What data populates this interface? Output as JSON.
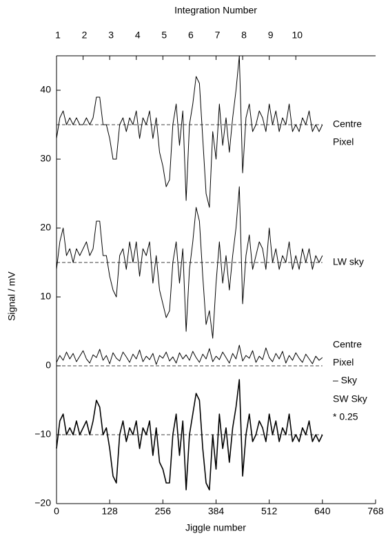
{
  "chart_data": {
    "type": "line",
    "top_xlabel": "Integration Number",
    "xlabel": "Jiggle number",
    "ylabel": "Signal / mV",
    "xlim": [
      0,
      768
    ],
    "xticks": [
      0,
      128,
      256,
      384,
      512,
      640,
      768
    ],
    "top_xticks": [
      {
        "value": 0,
        "label": "1"
      },
      {
        "value": 64,
        "label": "2"
      },
      {
        "value": 128,
        "label": "3"
      },
      {
        "value": 192,
        "label": "4"
      },
      {
        "value": 256,
        "label": "5"
      },
      {
        "value": 320,
        "label": "6"
      },
      {
        "value": 384,
        "label": "7"
      },
      {
        "value": 448,
        "label": "8"
      },
      {
        "value": 512,
        "label": "9"
      },
      {
        "value": 576,
        "label": "10"
      }
    ],
    "ylim": [
      -20,
      45
    ],
    "yticks": [
      {
        "value": -20,
        "label": "−20"
      },
      {
        "value": -10,
        "label": "−10"
      },
      0,
      10,
      20,
      30,
      40
    ],
    "reference_lines": [
      35,
      15,
      0,
      -10
    ],
    "x": [
      0,
      8,
      16,
      24,
      32,
      40,
      48,
      56,
      64,
      72,
      80,
      88,
      96,
      104,
      112,
      120,
      128,
      136,
      144,
      152,
      160,
      168,
      176,
      184,
      192,
      200,
      208,
      216,
      224,
      232,
      240,
      248,
      256,
      264,
      272,
      280,
      288,
      296,
      304,
      312,
      320,
      328,
      336,
      344,
      352,
      360,
      368,
      376,
      384,
      392,
      400,
      408,
      416,
      424,
      432,
      440,
      448,
      456,
      464,
      472,
      480,
      488,
      496,
      504,
      512,
      520,
      528,
      536,
      544,
      552,
      560,
      568,
      576,
      584,
      592,
      600,
      608,
      616,
      624,
      632,
      640
    ],
    "series": [
      {
        "name": [
          "Centre",
          "Pixel"
        ],
        "color": "#000000",
        "values": [
          33,
          36,
          37,
          35,
          36,
          35,
          36,
          35,
          35,
          36,
          35,
          36,
          39,
          39,
          35,
          35,
          33,
          30,
          30,
          35,
          36,
          34,
          36,
          35,
          37,
          33,
          36,
          35,
          37,
          33,
          36,
          31,
          29,
          26,
          27,
          35,
          38,
          32,
          37,
          24,
          35,
          38,
          42,
          41,
          33,
          25,
          23,
          34,
          30,
          38,
          32,
          36,
          31,
          36,
          40,
          45,
          28,
          36,
          38,
          34,
          35,
          37,
          36,
          34,
          38,
          35,
          37,
          34,
          36,
          35,
          38,
          34,
          35,
          34,
          36,
          35,
          37,
          34,
          35,
          34,
          35
        ]
      },
      {
        "name": [
          "LW sky"
        ],
        "color": "#000000",
        "values": [
          14,
          18,
          20,
          16,
          17,
          15,
          17,
          16,
          17,
          18,
          16,
          17,
          21,
          21,
          16,
          16,
          13,
          11,
          10,
          16,
          17,
          14,
          18,
          15,
          18,
          13,
          17,
          16,
          18,
          12,
          16,
          11,
          9,
          7,
          8,
          15,
          18,
          12,
          17,
          5,
          14,
          18,
          23,
          21,
          13,
          6,
          8,
          4,
          12,
          18,
          12,
          16,
          11,
          16,
          20,
          26,
          9,
          16,
          19,
          14,
          16,
          18,
          17,
          14,
          20,
          15,
          17,
          14,
          16,
          15,
          18,
          14,
          16,
          14,
          17,
          15,
          17,
          14,
          16,
          15,
          16
        ]
      },
      {
        "name": [
          "Centre",
          "Pixel",
          "– Sky"
        ],
        "color": "#000000",
        "values": [
          0.5,
          1.5,
          0.8,
          2,
          1,
          1.8,
          0.6,
          1.4,
          2.2,
          1,
          0.4,
          1.6,
          1.2,
          2.4,
          0.8,
          1.5,
          0.3,
          1.9,
          1.1,
          0.7,
          2,
          1.3,
          0.5,
          1.7,
          1,
          2.3,
          0.6,
          1.4,
          0.9,
          1.8,
          0.2,
          1.5,
          1.1,
          2,
          0.7,
          1.3,
          0.4,
          1.9,
          1,
          1.6,
          0.8,
          2.1,
          1.2,
          0.5,
          1.7,
          1,
          2.5,
          0.6,
          1.4,
          0.9,
          2,
          1.2,
          0.4,
          1.8,
          1,
          3,
          0.7,
          1.5,
          1.1,
          2.2,
          0.5,
          1.4,
          0.9,
          2.6,
          1.2,
          0.6,
          1.8,
          1,
          2.1,
          0.4,
          1.5,
          0.8,
          1.9,
          1.1,
          0.5,
          1.7,
          1,
          0.3,
          1.4,
          0.8,
          1.2
        ]
      },
      {
        "name": [
          "SW Sky",
          "* 0.25"
        ],
        "color": "#000000",
        "values": [
          -12,
          -8,
          -7,
          -10,
          -9,
          -10,
          -8,
          -10,
          -9,
          -8,
          -10,
          -8,
          -5,
          -6,
          -10,
          -9,
          -12,
          -16,
          -17,
          -10,
          -8,
          -11,
          -9,
          -10,
          -8,
          -12,
          -9,
          -10,
          -8,
          -13,
          -9,
          -14,
          -15,
          -17,
          -17,
          -10,
          -7,
          -13,
          -8,
          -18,
          -10,
          -7,
          -4,
          -5,
          -12,
          -17,
          -18,
          -10,
          -15,
          -7,
          -12,
          -9,
          -14,
          -9,
          -6,
          -2,
          -16,
          -10,
          -7,
          -11,
          -10,
          -8,
          -9,
          -11,
          -7,
          -10,
          -8,
          -11,
          -9,
          -10,
          -7,
          -11,
          -10,
          -11,
          -9,
          -10,
          -8,
          -11,
          -10,
          -11,
          -10
        ]
      }
    ]
  }
}
